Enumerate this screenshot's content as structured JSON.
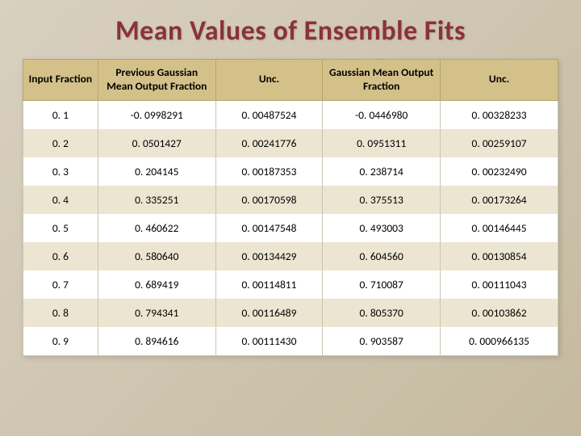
{
  "title": "Mean Values of Ensemble Fits",
  "table": {
    "columns": [
      "Input Fraction",
      "Previous Gaussian Mean Output Fraction",
      "Unc.",
      "Gaussian Mean Output Fraction",
      "Unc."
    ],
    "rows": [
      [
        "0. 1",
        "-0. 0998291",
        "0. 00487524",
        "-0. 0446980",
        "0. 00328233"
      ],
      [
        "0. 2",
        "0. 0501427",
        "0. 00241776",
        "0. 0951311",
        "0. 00259107"
      ],
      [
        "0. 3",
        "0. 204145",
        "0. 00187353",
        "0. 238714",
        "0. 00232490"
      ],
      [
        "0. 4",
        "0. 335251",
        "0. 00170598",
        "0. 375513",
        "0. 00173264"
      ],
      [
        "0. 5",
        "0. 460622",
        "0. 00147548",
        "0. 493003",
        "0. 00146445"
      ],
      [
        "0. 6",
        "0. 580640",
        "0. 00134429",
        "0. 604560",
        "0. 00130854"
      ],
      [
        "0. 7",
        "0. 689419",
        "0. 00114811",
        "0. 710087",
        "0. 00111043"
      ],
      [
        "0. 8",
        "0. 794341",
        "0. 00116489",
        "0. 805370",
        "0. 00103862"
      ],
      [
        "0. 9",
        "0. 894616",
        "0. 00111430",
        "0. 903587",
        "0. 000966135"
      ]
    ],
    "header_bg": "#d4c18a",
    "row_even_bg": "#ece5d1",
    "row_odd_bg": "#ffffff",
    "border_color": "#ccc4b0",
    "title_color": "#8a323a",
    "slide_bg_from": "#d8d0c0",
    "slide_bg_to": "#c5baa0",
    "font_size_pt": 13.5,
    "title_font_size_pt": 34,
    "column_widths_pct": [
      14,
      22,
      20,
      22,
      22
    ]
  }
}
